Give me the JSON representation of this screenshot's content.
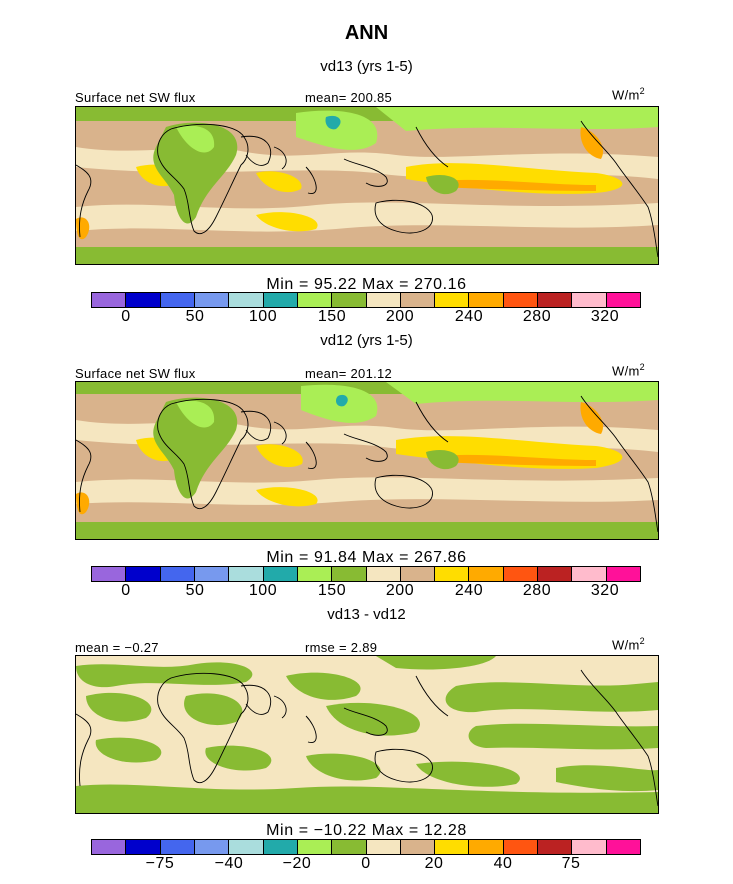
{
  "title": "ANN",
  "colors": [
    "#9966dd",
    "#0000cc",
    "#4466ee",
    "#7799ee",
    "#aadddd",
    "#22aaaa",
    "#aaee55",
    "#88bb33",
    "#f5e6c0",
    "#d9b38c",
    "#ffdd00",
    "#ffaa00",
    "#ff5511",
    "#bb2222",
    "#ffbbcc",
    "#ff1199"
  ],
  "panels": [
    {
      "subtitle": "vd13 (yrs 1-5)",
      "left_label": "Surface net SW flux",
      "mid_label": "mean= 200.85",
      "units": "W/m",
      "units_exp": "2",
      "stats": "Min =   95.22 Max =  270.16",
      "ticks": [
        "0",
        "50",
        "100",
        "150",
        "200",
        "240",
        "280",
        "320"
      ]
    },
    {
      "subtitle": "vd12 (yrs 1-5)",
      "left_label": "Surface net SW flux",
      "mid_label": "mean= 201.12",
      "units": "W/m",
      "units_exp": "2",
      "stats": "Min =   91.84 Max =  267.86",
      "ticks": [
        "0",
        "50",
        "100",
        "150",
        "200",
        "240",
        "280",
        "320"
      ]
    },
    {
      "subtitle": "vd13 - vd12",
      "left_label": "mean =  −0.27",
      "mid_label": "rmse =   2.89",
      "units": "W/m",
      "units_exp": "2",
      "stats": "Min = −10.22 Max =  12.28",
      "ticks": [
        "−75",
        "−40",
        "−20",
        "0",
        "20",
        "40",
        "75"
      ]
    }
  ],
  "chart_data": [
    {
      "type": "heatmap",
      "title": "vd13 (yrs 1-5)",
      "field": "Surface net SW flux",
      "units": "W/m2",
      "mean": 200.85,
      "min": 95.22,
      "max": 270.16,
      "levels": [
        0,
        50,
        100,
        150,
        200,
        240,
        280,
        320
      ]
    },
    {
      "type": "heatmap",
      "title": "vd12 (yrs 1-5)",
      "field": "Surface net SW flux",
      "units": "W/m2",
      "mean": 201.12,
      "min": 91.84,
      "max": 267.86,
      "levels": [
        0,
        50,
        100,
        150,
        200,
        240,
        280,
        320
      ]
    },
    {
      "type": "heatmap",
      "title": "vd13 - vd12",
      "units": "W/m2",
      "mean": -0.27,
      "rmse": 2.89,
      "min": -10.22,
      "max": 12.28,
      "levels": [
        -75,
        -40,
        -20,
        0,
        20,
        40,
        75
      ]
    }
  ]
}
